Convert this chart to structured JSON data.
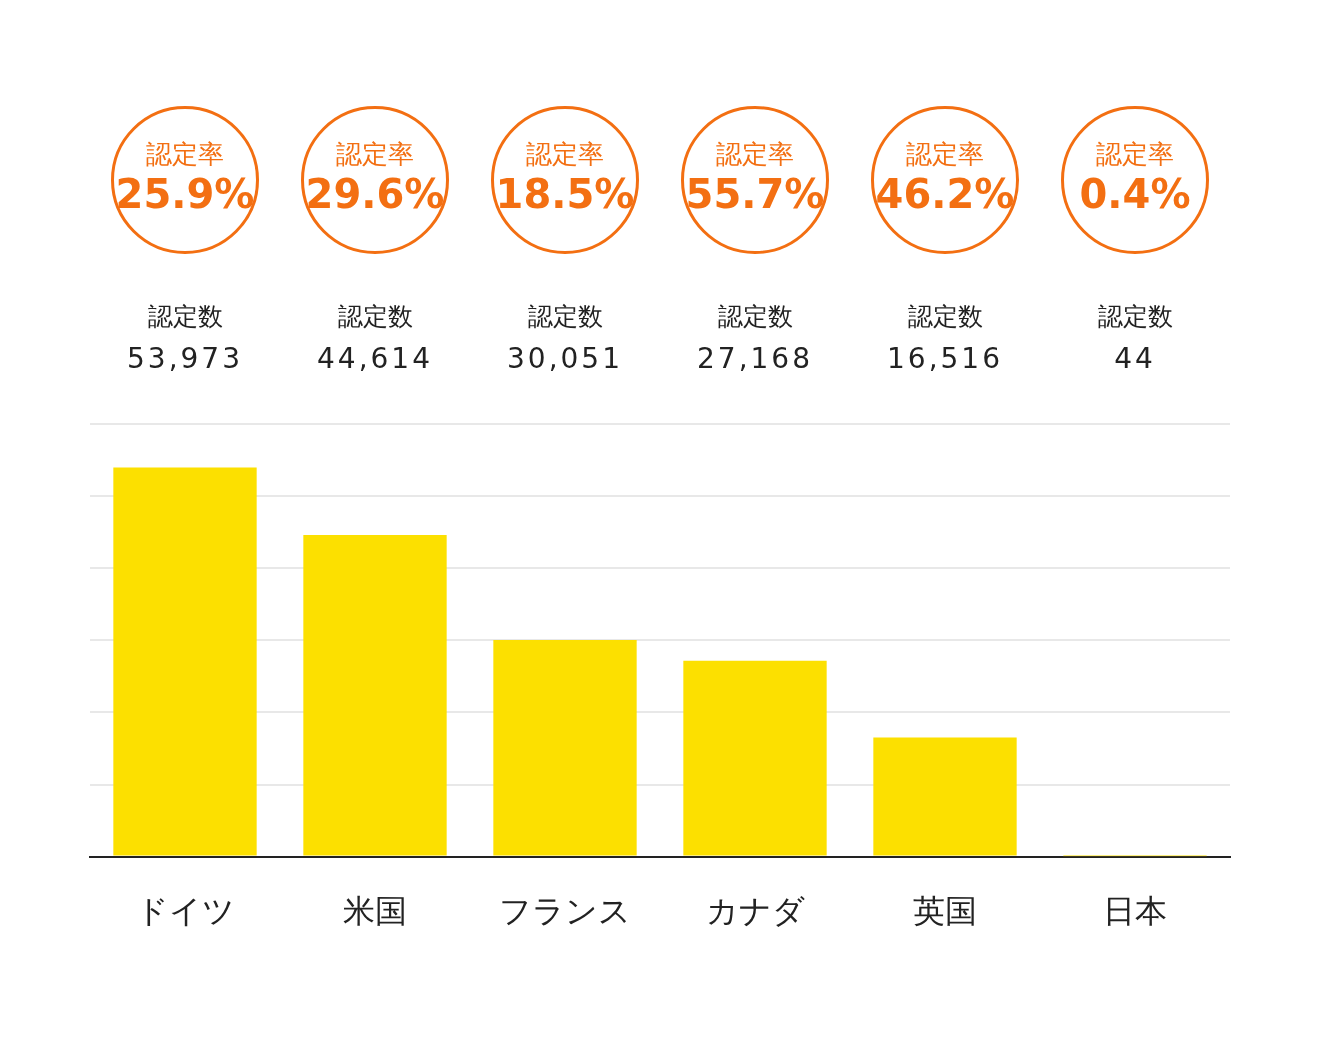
{
  "chart_data": {
    "type": "bar",
    "categories": [
      "ドイツ",
      "米国",
      "フランス",
      "カナダ",
      "英国",
      "日本"
    ],
    "values": [
      53973,
      44614,
      30051,
      27168,
      16516,
      44
    ],
    "color": "#fce000",
    "value_labels": [
      "53,973",
      "44,614",
      "30,051",
      "27,168",
      "16,516",
      "44"
    ],
    "ylim": [
      0,
      60000
    ],
    "yticks": [
      {
        "value": 0,
        "label": null
      },
      {
        "value": 10000,
        "label": null
      },
      {
        "value": 20000,
        "label": null
      },
      {
        "value": 30000,
        "label": null
      },
      {
        "value": 40000,
        "label": null
      },
      {
        "value": 50000,
        "label": null
      },
      {
        "value": 60000,
        "label": null
      }
    ],
    "tick_labels": "x",
    "grid": "y",
    "legend": false,
    "annotations": [
      "認定率\n25.9%",
      "認定数",
      "認定率\n29.6%",
      "認定数",
      "認定率\n18.5%",
      "認定数",
      "認定率\n55.7%",
      "認定数",
      "認定率\n46.2%",
      "認定数",
      "認定率\n0.4%",
      "認定数"
    ]
  }
}
